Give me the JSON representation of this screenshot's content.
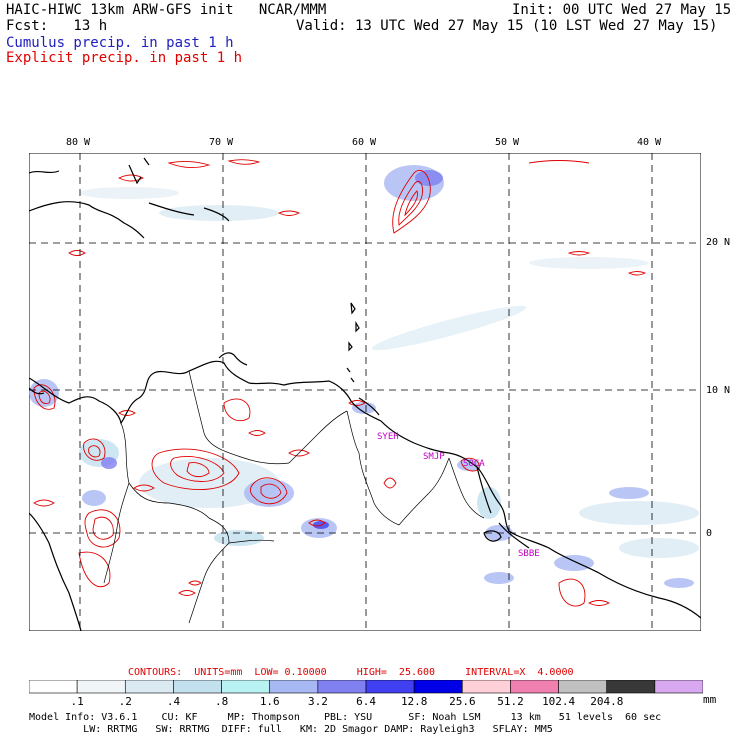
{
  "header": {
    "line1_left": "HAIC-HIWC 13km ARW-GFS init   NCAR/MMM",
    "line1_right": "Init: 00 UTC Wed 27 May 15",
    "line2_left": "Fcst:   13 h",
    "line2_right": "Valid: 13 UTC Wed 27 May 15 (10 LST Wed 27 May 15)",
    "legend_cumulus": "Cumulus precip. in past 1 h",
    "legend_explicit": "Explicit precip. in past 1 h"
  },
  "map": {
    "lon_labels": [
      "80 W",
      "70 W",
      "60 W",
      "50 W",
      "40 W"
    ],
    "lat_labels": [
      "20 N",
      "10 N",
      "0"
    ],
    "stations": [
      "SYEH",
      "SMJP",
      "SOCA",
      "SBBE"
    ]
  },
  "contours": {
    "label": "CONTOURS:  UNITS=mm  LOW= 0.10000     HIGH=  25.600     INTERVAL=X  4.0000"
  },
  "colorbar": {
    "levels": [
      ".1",
      ".2",
      ".4",
      ".8",
      "1.6",
      "3.2",
      "6.4",
      "12.8",
      "25.6",
      "51.2",
      "102.4",
      "204.8"
    ],
    "unit": "mm",
    "colors": [
      "#ffffff",
      "#f0f5f8",
      "#dbeaf2",
      "#c2e0ee",
      "#b9f2f2",
      "#a8b8f2",
      "#8080f0",
      "#4040f0",
      "#0000e8",
      "#ffd0d8",
      "#f080b0",
      "#c0c0c0",
      "#383838",
      "#d8a8f0"
    ]
  },
  "footer": {
    "line1": "Model Info: V3.6.1    CU: KF     MP: Thompson    PBL: YSU      SF: Noah LSM     13 km   51 levels  60 sec",
    "line2": "         LW: RRTMG   SW: RRTMG  DIFF: full   KM: 2D Smagor DAMP: Rayleigh3   SFLAY: MM5"
  }
}
